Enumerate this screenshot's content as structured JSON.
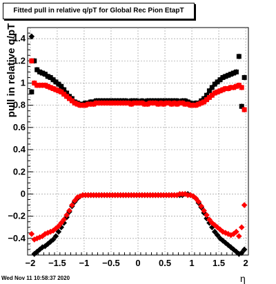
{
  "chart_data": {
    "type": "scatter",
    "title": "Fitted pull in relative q/pT for Global Rec Pion EtapT",
    "xlabel": "η",
    "ylabel": "pull in relative q/pT",
    "xlim": [
      -2.05,
      2.05
    ],
    "ylim": [
      -0.55,
      1.5
    ],
    "grid": true,
    "x_ticks": [
      -2,
      -1.5,
      -1,
      -0.5,
      0,
      0.5,
      1,
      1.5,
      2
    ],
    "x_tick_labels": [
      "−2",
      "−1.5",
      "−1",
      "−0.5",
      "0",
      "0.5",
      "1",
      "1.5",
      "2"
    ],
    "y_ticks": [
      -0.4,
      -0.2,
      0,
      0.2,
      0.4,
      0.6,
      0.8,
      1.0,
      1.2,
      1.4
    ],
    "y_tick_labels": [
      "−0.4",
      "−0.2",
      "0",
      "0.2",
      "0.4",
      "0.6",
      "0.8",
      "1",
      "1.2",
      "1.4"
    ],
    "series": [
      {
        "color": "#000000",
        "marker": "square",
        "x": [
          -1.975,
          -1.925,
          -1.875,
          -1.825,
          -1.775,
          -1.725,
          -1.675,
          -1.625,
          -1.575,
          -1.525,
          -1.475,
          -1.425,
          -1.375,
          -1.325,
          -1.275,
          -1.225,
          -1.175,
          -1.125,
          -1.075,
          -1.025,
          -0.975,
          -0.925,
          -0.875,
          -0.825,
          -0.775,
          -0.725,
          -0.675,
          -0.625,
          -0.575,
          -0.525,
          -0.475,
          -0.425,
          -0.375,
          -0.325,
          -0.275,
          -0.225,
          -0.175,
          -0.125,
          -0.075,
          -0.025,
          0.025,
          0.075,
          0.125,
          0.175,
          0.225,
          0.275,
          0.325,
          0.375,
          0.425,
          0.475,
          0.525,
          0.575,
          0.625,
          0.675,
          0.725,
          0.775,
          0.825,
          0.875,
          0.925,
          0.975,
          1.025,
          1.075,
          1.125,
          1.175,
          1.225,
          1.275,
          1.325,
          1.375,
          1.425,
          1.475,
          1.525,
          1.575,
          1.625,
          1.675,
          1.725,
          1.775,
          1.825,
          1.875,
          1.925,
          1.975
        ],
        "y": [
          0.92,
          1.2,
          1.12,
          1.1,
          1.09,
          1.08,
          1.06,
          1.05,
          1.03,
          1.01,
          0.99,
          0.97,
          0.94,
          0.91,
          0.88,
          0.86,
          0.83,
          0.82,
          0.81,
          0.81,
          0.82,
          0.82,
          0.83,
          0.83,
          0.84,
          0.84,
          0.84,
          0.84,
          0.84,
          0.84,
          0.84,
          0.84,
          0.84,
          0.84,
          0.84,
          0.84,
          0.83,
          0.84,
          0.84,
          0.84,
          0.83,
          0.84,
          0.83,
          0.84,
          0.84,
          0.84,
          0.84,
          0.84,
          0.84,
          0.84,
          0.84,
          0.84,
          0.84,
          0.84,
          0.84,
          0.83,
          0.84,
          0.84,
          0.83,
          0.82,
          0.81,
          0.82,
          0.82,
          0.84,
          0.86,
          0.89,
          0.93,
          0.96,
          0.99,
          1.01,
          1.03,
          1.05,
          1.06,
          1.07,
          1.08,
          1.09,
          1.1,
          1.24,
          0.79,
          1.05
        ]
      },
      {
        "color": "#000000",
        "marker": "diamond",
        "x": [
          -1.975,
          -1.925,
          -1.875,
          -1.825,
          -1.775,
          -1.725,
          -1.675,
          -1.625,
          -1.575,
          -1.525,
          -1.475,
          -1.425,
          -1.375,
          -1.325,
          -1.275,
          -1.225,
          -1.175,
          -1.125,
          -1.075,
          -1.025,
          -0.975,
          -0.925,
          -0.875,
          -0.825,
          -0.775,
          -0.725,
          -0.675,
          -0.625,
          -0.575,
          -0.525,
          -0.475,
          -0.425,
          -0.375,
          -0.325,
          -0.275,
          -0.225,
          -0.175,
          -0.125,
          -0.075,
          -0.025,
          0.025,
          0.075,
          0.125,
          0.175,
          0.225,
          0.275,
          0.325,
          0.375,
          0.425,
          0.475,
          0.525,
          0.575,
          0.625,
          0.675,
          0.725,
          0.775,
          0.825,
          0.875,
          0.925,
          0.975,
          1.025,
          1.075,
          1.125,
          1.175,
          1.225,
          1.275,
          1.325,
          1.375,
          1.425,
          1.475,
          1.525,
          1.575,
          1.625,
          1.675,
          1.725,
          1.775,
          1.825,
          1.875,
          1.925,
          1.975
        ],
        "y": [
          1.42,
          -0.54,
          -0.52,
          -0.5,
          -0.48,
          -0.47,
          -0.45,
          -0.43,
          -0.41,
          -0.38,
          -0.34,
          -0.3,
          -0.26,
          -0.21,
          -0.16,
          -0.11,
          -0.07,
          -0.04,
          -0.02,
          -0.01,
          -0.01,
          -0.01,
          -0.01,
          -0.01,
          -0.01,
          -0.01,
          -0.01,
          -0.01,
          -0.01,
          -0.01,
          -0.01,
          -0.01,
          -0.01,
          -0.01,
          -0.01,
          -0.01,
          -0.01,
          -0.01,
          -0.01,
          -0.01,
          -0.01,
          -0.01,
          -0.01,
          -0.01,
          -0.01,
          -0.01,
          -0.01,
          -0.01,
          -0.01,
          -0.01,
          -0.01,
          -0.01,
          -0.01,
          -0.01,
          -0.01,
          -0.01,
          -0.01,
          0.0,
          0.0,
          -0.01,
          -0.02,
          -0.04,
          -0.08,
          -0.12,
          -0.17,
          -0.22,
          -0.26,
          -0.3,
          -0.34,
          -0.37,
          -0.4,
          -0.42,
          -0.44,
          -0.46,
          -0.48,
          -0.5,
          -0.52,
          -0.54,
          -0.53,
          -0.5
        ]
      },
      {
        "color": "#ff0000",
        "marker": "square",
        "x": [
          -1.975,
          -1.925,
          -1.875,
          -1.825,
          -1.775,
          -1.725,
          -1.675,
          -1.625,
          -1.575,
          -1.525,
          -1.475,
          -1.425,
          -1.375,
          -1.325,
          -1.275,
          -1.225,
          -1.175,
          -1.125,
          -1.075,
          -1.025,
          -0.975,
          -0.925,
          -0.875,
          -0.825,
          -0.775,
          -0.725,
          -0.675,
          -0.625,
          -0.575,
          -0.525,
          -0.475,
          -0.425,
          -0.375,
          -0.325,
          -0.275,
          -0.225,
          -0.175,
          -0.125,
          -0.075,
          -0.025,
          0.025,
          0.075,
          0.125,
          0.175,
          0.225,
          0.275,
          0.325,
          0.375,
          0.425,
          0.475,
          0.525,
          0.575,
          0.625,
          0.675,
          0.725,
          0.775,
          0.825,
          0.875,
          0.925,
          0.975,
          1.025,
          1.075,
          1.125,
          1.175,
          1.225,
          1.275,
          1.325,
          1.375,
          1.425,
          1.475,
          1.525,
          1.575,
          1.625,
          1.675,
          1.725,
          1.775,
          1.825,
          1.875,
          1.925,
          1.975
        ],
        "y": [
          1.2,
          1.0,
          0.98,
          0.98,
          0.98,
          0.98,
          0.97,
          0.96,
          0.95,
          0.94,
          0.93,
          0.92,
          0.9,
          0.88,
          0.86,
          0.84,
          0.82,
          0.81,
          0.8,
          0.8,
          0.8,
          0.81,
          0.81,
          0.81,
          0.82,
          0.82,
          0.82,
          0.82,
          0.82,
          0.82,
          0.82,
          0.82,
          0.82,
          0.82,
          0.82,
          0.82,
          0.82,
          0.81,
          0.82,
          0.82,
          0.82,
          0.82,
          0.81,
          0.81,
          0.82,
          0.82,
          0.82,
          0.81,
          0.82,
          0.81,
          0.82,
          0.82,
          0.81,
          0.82,
          0.81,
          0.82,
          0.82,
          0.81,
          0.81,
          0.8,
          0.8,
          0.8,
          0.81,
          0.82,
          0.83,
          0.85,
          0.87,
          0.89,
          0.91,
          0.92,
          0.93,
          0.94,
          0.95,
          0.95,
          0.96,
          0.96,
          0.97,
          0.98,
          0.96,
          0.76
        ]
      },
      {
        "color": "#ff0000",
        "marker": "diamond",
        "x": [
          -1.975,
          -1.925,
          -1.875,
          -1.825,
          -1.775,
          -1.725,
          -1.675,
          -1.625,
          -1.575,
          -1.525,
          -1.475,
          -1.425,
          -1.375,
          -1.325,
          -1.275,
          -1.225,
          -1.175,
          -1.125,
          -1.075,
          -1.025,
          -0.975,
          -0.925,
          -0.875,
          -0.825,
          -0.775,
          -0.725,
          -0.675,
          -0.625,
          -0.575,
          -0.525,
          -0.475,
          -0.425,
          -0.375,
          -0.325,
          -0.275,
          -0.225,
          -0.175,
          -0.125,
          -0.075,
          -0.025,
          0.025,
          0.075,
          0.125,
          0.175,
          0.225,
          0.275,
          0.325,
          0.375,
          0.425,
          0.475,
          0.525,
          0.575,
          0.625,
          0.675,
          0.725,
          0.775,
          0.825,
          0.875,
          0.925,
          0.975,
          1.025,
          1.075,
          1.125,
          1.175,
          1.225,
          1.275,
          1.325,
          1.375,
          1.425,
          1.475,
          1.525,
          1.575,
          1.625,
          1.675,
          1.725,
          1.775,
          1.825,
          1.875,
          1.925,
          1.975
        ],
        "y": [
          -0.36,
          -0.41,
          -0.4,
          -0.39,
          -0.38,
          -0.36,
          -0.35,
          -0.34,
          -0.33,
          -0.31,
          -0.29,
          -0.26,
          -0.23,
          -0.19,
          -0.15,
          -0.1,
          -0.06,
          -0.03,
          -0.02,
          -0.01,
          -0.01,
          -0.01,
          -0.01,
          -0.01,
          -0.01,
          -0.01,
          -0.01,
          -0.01,
          -0.01,
          -0.01,
          -0.01,
          -0.01,
          -0.01,
          -0.01,
          -0.01,
          -0.01,
          -0.01,
          -0.01,
          -0.01,
          -0.01,
          -0.01,
          -0.01,
          -0.01,
          -0.01,
          -0.01,
          -0.01,
          -0.01,
          -0.01,
          -0.01,
          -0.01,
          -0.01,
          -0.01,
          -0.01,
          -0.01,
          -0.01,
          0.0,
          0.0,
          0.0,
          -0.01,
          -0.01,
          -0.02,
          -0.04,
          -0.07,
          -0.11,
          -0.15,
          -0.19,
          -0.23,
          -0.26,
          -0.28,
          -0.3,
          -0.32,
          -0.34,
          -0.35,
          -0.36,
          -0.37,
          -0.36,
          -0.34,
          -0.38,
          -0.3,
          -0.1
        ]
      }
    ]
  },
  "footer": {
    "timestamp": "Wed Nov 11 10:58:37 2020"
  }
}
